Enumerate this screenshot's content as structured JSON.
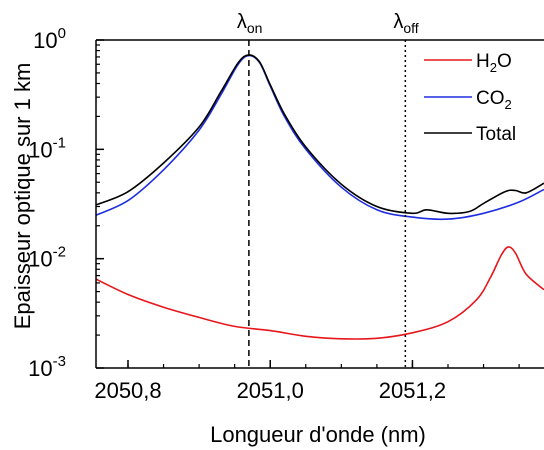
{
  "chart_data": {
    "type": "line",
    "title": "",
    "xlabel": "Longueur d'onde (nm)",
    "ylabel": "Epaisseur optique sur 1 km",
    "xlim": [
      2050.755,
      2051.385
    ],
    "ylim": [
      0.001,
      1
    ],
    "yscale": "log",
    "x_ticks": [
      {
        "value": 2050.8,
        "label": "2050,8"
      },
      {
        "value": 2051.0,
        "label": "2051,0"
      },
      {
        "value": 2051.2,
        "label": "2051,2"
      }
    ],
    "y_ticks": [
      {
        "value": 0.001,
        "base": "10",
        "exp": "-3"
      },
      {
        "value": 0.01,
        "base": "10",
        "exp": "-2"
      },
      {
        "value": 0.1,
        "base": "10",
        "exp": "-1"
      },
      {
        "value": 1,
        "base": "10",
        "exp": "0"
      }
    ],
    "markers": [
      {
        "name": "on",
        "x": 2050.97,
        "label_base": "λ",
        "label_sub": "on",
        "style": "dashed"
      },
      {
        "name": "off",
        "x": 2051.19,
        "label_base": "λ",
        "label_sub": "off",
        "style": "dotted"
      }
    ],
    "legend": "top-right",
    "series": [
      {
        "name": "H2O",
        "label_base": "H",
        "label_sub": "2",
        "label_tail": "O",
        "color": "#e8161b",
        "x": [
          2050.755,
          2050.8,
          2050.85,
          2050.9,
          2050.95,
          2051.0,
          2051.05,
          2051.1,
          2051.15,
          2051.2,
          2051.25,
          2051.29,
          2051.31,
          2051.325,
          2051.335,
          2051.345,
          2051.36,
          2051.385
        ],
        "y": [
          0.0065,
          0.0047,
          0.0036,
          0.0029,
          0.0024,
          0.0022,
          0.00195,
          0.00185,
          0.00187,
          0.0021,
          0.00265,
          0.0042,
          0.0068,
          0.0108,
          0.0128,
          0.0112,
          0.0072,
          0.0052
        ]
      },
      {
        "name": "CO2",
        "label_base": "CO",
        "label_sub": "2",
        "label_tail": "",
        "color": "#1f2ee0",
        "x": [
          2050.755,
          2050.8,
          2050.85,
          2050.9,
          2050.93,
          2050.955,
          2050.97,
          2050.985,
          2051.0,
          2051.02,
          2051.05,
          2051.1,
          2051.15,
          2051.2,
          2051.25,
          2051.3,
          2051.35,
          2051.385
        ],
        "y": [
          0.025,
          0.034,
          0.065,
          0.15,
          0.31,
          0.6,
          0.72,
          0.62,
          0.38,
          0.2,
          0.1,
          0.045,
          0.028,
          0.024,
          0.023,
          0.026,
          0.033,
          0.043
        ]
      },
      {
        "name": "Total",
        "label_base": "Total",
        "label_sub": "",
        "label_tail": "",
        "color": "#000000",
        "x": [
          2050.755,
          2050.8,
          2050.85,
          2050.9,
          2050.93,
          2050.955,
          2050.97,
          2050.985,
          2051.0,
          2051.02,
          2051.05,
          2051.1,
          2051.15,
          2051.2,
          2051.22,
          2051.25,
          2051.28,
          2051.3,
          2051.33,
          2051.345,
          2051.36,
          2051.385
        ],
        "y": [
          0.031,
          0.041,
          0.075,
          0.16,
          0.33,
          0.62,
          0.73,
          0.63,
          0.39,
          0.21,
          0.105,
          0.048,
          0.03,
          0.026,
          0.028,
          0.026,
          0.027,
          0.032,
          0.041,
          0.042,
          0.04,
          0.049
        ]
      }
    ]
  }
}
